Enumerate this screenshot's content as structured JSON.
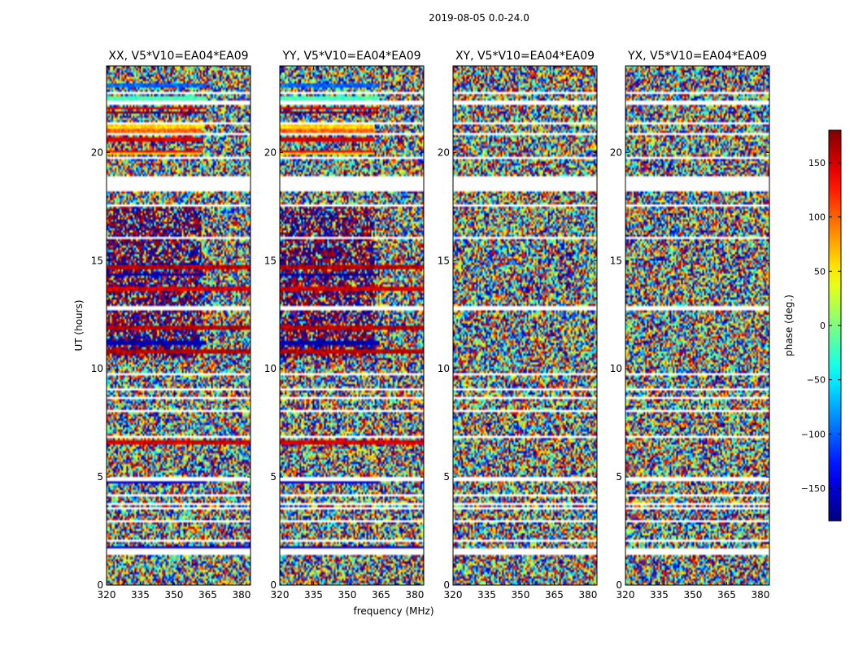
{
  "chart_data": {
    "type": "heatmap",
    "suptitle": "2019-08-05 0.0-24.0",
    "xlabel": "frequency (MHz)",
    "ylabel": "UT (hours)",
    "xlim": [
      320,
      384
    ],
    "ylim": [
      0,
      24
    ],
    "x_ticks": [
      320,
      335,
      350,
      365,
      380
    ],
    "y_ticks": [
      0,
      5,
      10,
      15,
      20
    ],
    "panels": [
      {
        "title": "XX, V5*V10=EA04*EA09",
        "pol": "XX"
      },
      {
        "title": "YY, V5*V10=EA04*EA09",
        "pol": "YY"
      },
      {
        "title": "XY, V5*V10=EA04*EA09",
        "pol": "XY"
      },
      {
        "title": "YX, V5*V10=EA04*EA09",
        "pol": "YX"
      }
    ],
    "colorbar": {
      "label": "phase (deg.)",
      "range": [
        -180,
        180
      ],
      "ticks": [
        -150,
        -100,
        -50,
        0,
        50,
        100,
        150
      ],
      "colormap": "jet"
    },
    "flagged_ut_ranges": [
      [
        0.3,
        0.35
      ],
      [
        0.65,
        0.7
      ],
      [
        1.42,
        1.5
      ],
      [
        1.55,
        1.75
      ],
      [
        2.02,
        2.07
      ],
      [
        2.5,
        2.55
      ],
      [
        2.92,
        2.97
      ],
      [
        3.55,
        3.6
      ],
      [
        3.75,
        3.8
      ],
      [
        4.1,
        4.15
      ],
      [
        4.45,
        4.5
      ],
      [
        4.8,
        5.0
      ],
      [
        6.0,
        6.05
      ],
      [
        6.8,
        6.9
      ],
      [
        7.95,
        8.1
      ],
      [
        8.65,
        8.7
      ],
      [
        9.0,
        9.1
      ],
      [
        9.75,
        9.8
      ],
      [
        10.3,
        10.35
      ],
      [
        12.75,
        12.95
      ],
      [
        14.2,
        14.25
      ],
      [
        15.3,
        15.35
      ],
      [
        16.05,
        16.1
      ],
      [
        16.4,
        16.45
      ],
      [
        17.5,
        17.6
      ],
      [
        17.9,
        17.95
      ],
      [
        18.25,
        18.95
      ],
      [
        19.7,
        19.85
      ],
      [
        20.85,
        20.95
      ],
      [
        21.35,
        21.45
      ],
      [
        22.2,
        22.45
      ],
      [
        22.75,
        22.85
      ],
      [
        23.3,
        23.35
      ]
    ],
    "strong_phase_bands": [
      {
        "ut": [
          23.05,
          23.2
        ],
        "phase": -100,
        "max_mhz": 364
      },
      {
        "ut": [
          22.45,
          22.6
        ],
        "phase": -20,
        "max_mhz": 364
      },
      {
        "ut": [
          22.0,
          22.15
        ],
        "phase": 150,
        "max_mhz": 364
      },
      {
        "ut": [
          21.8,
          21.9
        ],
        "phase": 170,
        "max_mhz": 364
      },
      {
        "ut": [
          21.15,
          21.3
        ],
        "phase": 60,
        "max_mhz": 362
      },
      {
        "ut": [
          20.95,
          21.1
        ],
        "phase": 100,
        "max_mhz": 362
      },
      {
        "ut": [
          20.5,
          20.7
        ],
        "phase": 150,
        "max_mhz": 362
      },
      {
        "ut": [
          20.0,
          20.15
        ],
        "phase": 140,
        "max_mhz": 362
      },
      {
        "ut": [
          19.9,
          20.0
        ],
        "phase": 60,
        "max_mhz": 362
      },
      {
        "ut": [
          14.65,
          14.8
        ],
        "phase": 160,
        "max_mhz": 384
      },
      {
        "ut": [
          14.3,
          14.45
        ],
        "phase": -160,
        "max_mhz": 364
      },
      {
        "ut": [
          13.65,
          13.85
        ],
        "phase": 150,
        "max_mhz": 384
      },
      {
        "ut": [
          11.85,
          12.05
        ],
        "phase": 160,
        "max_mhz": 384
      },
      {
        "ut": [
          11.1,
          11.3
        ],
        "phase": -160,
        "max_mhz": 364
      },
      {
        "ut": [
          10.75,
          10.95
        ],
        "phase": 160,
        "max_mhz": 384
      },
      {
        "ut": [
          6.5,
          6.65
        ],
        "phase": 150,
        "max_mhz": 384
      },
      {
        "ut": [
          4.7,
          4.8
        ],
        "phase": -150,
        "max_mhz": 364
      },
      {
        "ut": [
          1.75,
          1.85
        ],
        "phase": -150,
        "max_mhz": 384
      }
    ]
  }
}
